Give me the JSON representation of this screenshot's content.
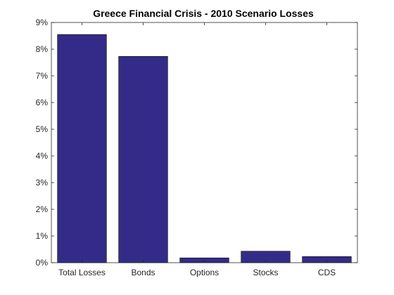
{
  "chart_data": {
    "type": "bar",
    "title": "Greece Financial Crisis - 2010 Scenario Losses",
    "xlabel": "",
    "ylabel": "",
    "categories": [
      "Total Losses",
      "Bonds",
      "Options",
      "Stocks",
      "CDS"
    ],
    "values": [
      8.55,
      7.73,
      0.18,
      0.43,
      0.23
    ],
    "ylim": [
      0,
      9
    ],
    "yticks": [
      0,
      1,
      2,
      3,
      4,
      5,
      6,
      7,
      8,
      9
    ],
    "ytick_labels": [
      "0%",
      "1%",
      "2%",
      "3%",
      "4%",
      "5%",
      "6%",
      "7%",
      "8%",
      "9%"
    ],
    "grid": false,
    "legend": false,
    "colors": {
      "bar_fill": "#332b87",
      "bar_edge": "#000000",
      "axes": "#262626"
    }
  }
}
